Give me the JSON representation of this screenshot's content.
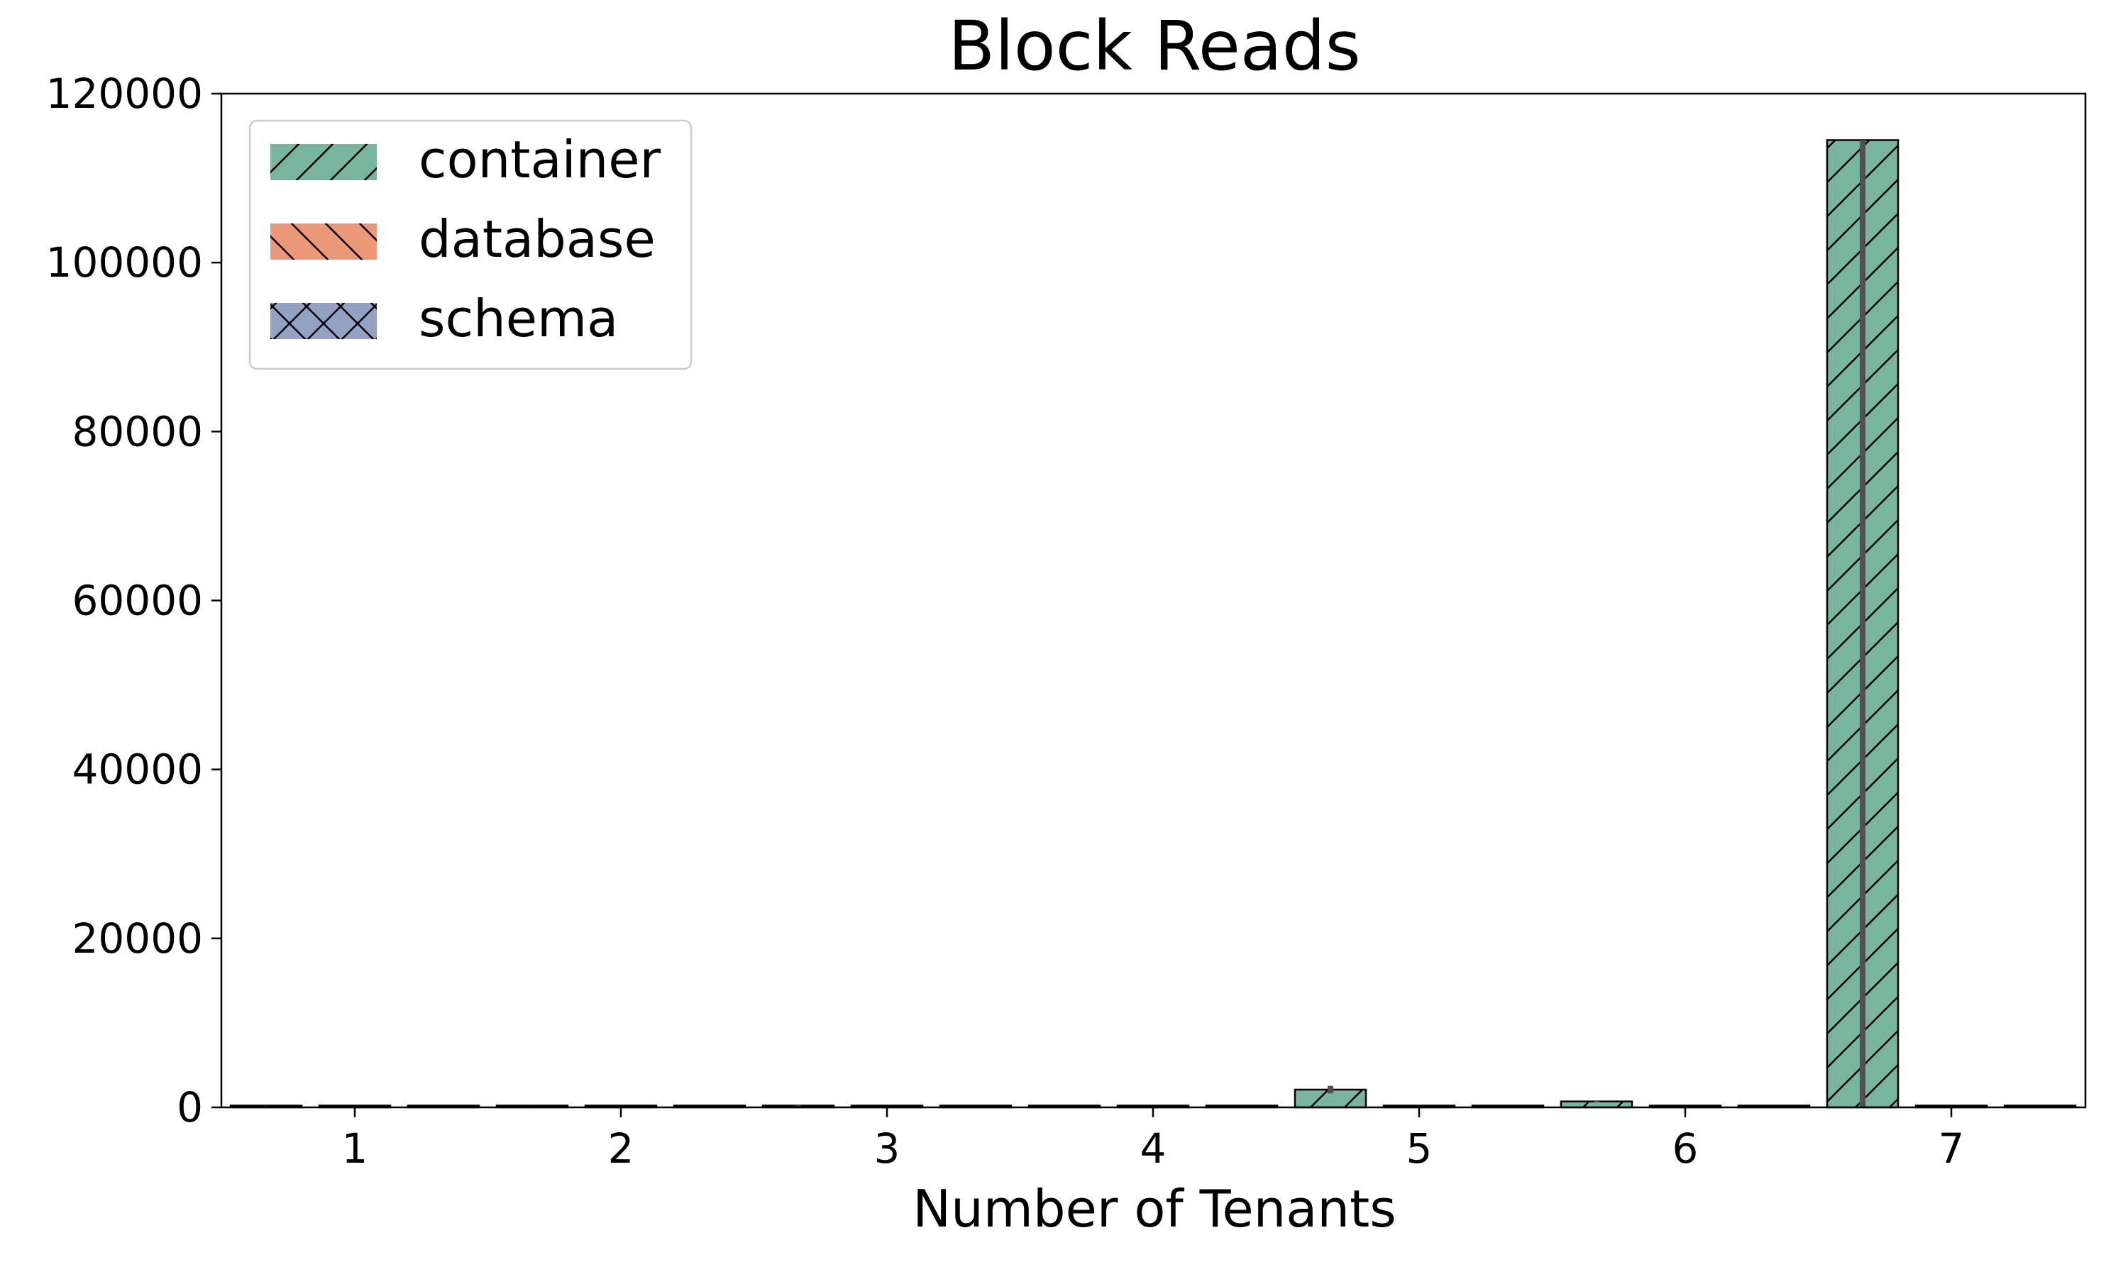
{
  "chart_data": {
    "type": "bar",
    "title": "Block Reads",
    "xlabel": "Number of Tenants",
    "ylabel": "",
    "categories": [
      "1",
      "2",
      "3",
      "4",
      "5",
      "6",
      "7"
    ],
    "ylim": [
      0,
      120000
    ],
    "yticks": [
      0,
      20000,
      40000,
      60000,
      80000,
      100000,
      120000
    ],
    "ytick_labels": [
      "0",
      "20000",
      "40000",
      "60000",
      "80000",
      "100000",
      "120000"
    ],
    "grid": false,
    "legend_position": "top-left",
    "series": [
      {
        "name": "container",
        "color": "#77b59e",
        "hatch": "forward-diagonal",
        "values": [
          120,
          80,
          200,
          0,
          2100,
          700,
          114500
        ],
        "errors": [
          50,
          40,
          80,
          0,
          900,
          250,
          0
        ]
      },
      {
        "name": "database",
        "color": "#eb9878",
        "hatch": "back-diagonal",
        "values": [
          60,
          0,
          0,
          0,
          30,
          0,
          0
        ],
        "errors": [
          0,
          0,
          0,
          0,
          0,
          0,
          0
        ]
      },
      {
        "name": "schema",
        "color": "#93a2c4",
        "hatch": "cross",
        "values": [
          0,
          60,
          0,
          80,
          0,
          60,
          0
        ],
        "errors": [
          0,
          0,
          0,
          0,
          0,
          0,
          0
        ]
      }
    ]
  }
}
